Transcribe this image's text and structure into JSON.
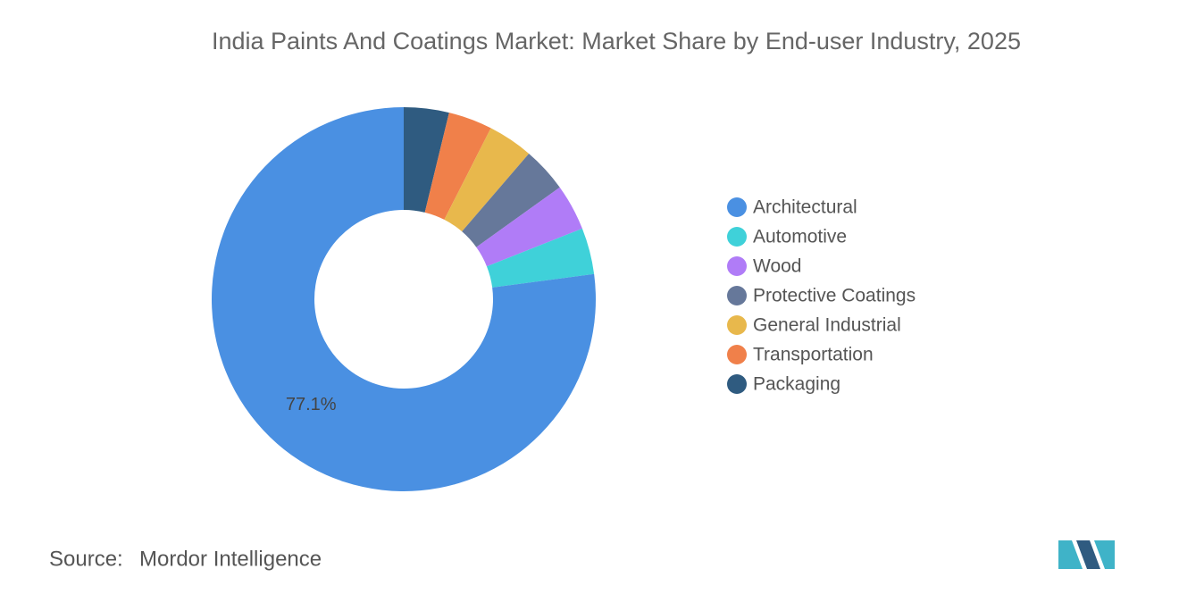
{
  "chart_data": {
    "type": "donut",
    "title": "India Paints And Coatings Market: Market Share by End-user Industry, 2025",
    "categories": [
      "Architectural",
      "Automotive",
      "Wood",
      "Protective Coatings",
      "General Industrial",
      "Transportation",
      "Packaging"
    ],
    "values": [
      77.1,
      3.9,
      3.9,
      3.8,
      3.8,
      3.7,
      3.8
    ],
    "value_labels": [
      "77.1%",
      null,
      null,
      null,
      null,
      null,
      null
    ],
    "colors": [
      "#4a90e2",
      "#3fd1d9",
      "#b07cf7",
      "#66789a",
      "#e8b84c",
      "#f0804a",
      "#2f5b80"
    ]
  },
  "source": {
    "label": "Source:",
    "text": "Mordor Intelligence"
  }
}
